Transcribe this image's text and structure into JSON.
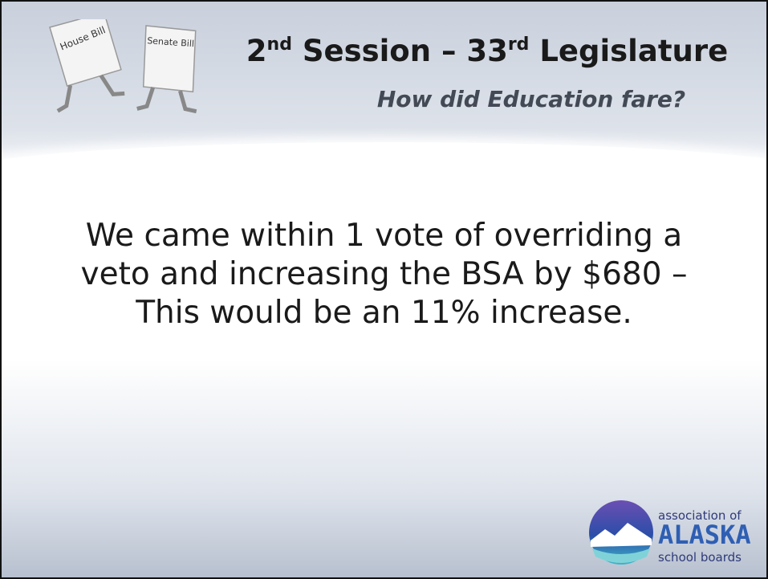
{
  "slide": {
    "title": [
      {
        "text": "2"
      },
      {
        "text": "nd",
        "sup": true
      },
      {
        "text": " Session – 33"
      },
      {
        "text": "rd",
        "sup": true
      },
      {
        "text": " Legislature"
      }
    ],
    "subtitle": "How did Education fare?",
    "clipart": {
      "left": "House Bill",
      "right": "Senate Bill"
    },
    "body": [
      "We came within 1 vote of overriding a",
      "veto and increasing the BSA by $680 –",
      "This would be an 11% increase."
    ],
    "logo": {
      "top": "association of",
      "middle": "ALASKA",
      "bottom": "school boards"
    }
  }
}
